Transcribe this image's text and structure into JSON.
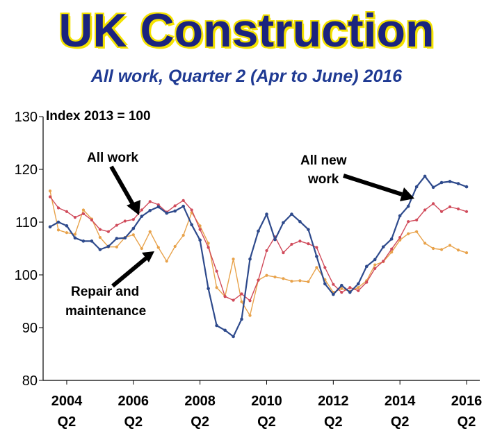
{
  "title": "UK Construction",
  "subtitle": "All work, Quarter 2 (Apr to June) 2016",
  "colors": {
    "title": "#1a237e",
    "title_outline": "#f4e200",
    "subtitle": "#1f3a93",
    "all_work": "#d04a5a",
    "all_new_work": "#2e4a8c",
    "repair_maintenance": "#e8a24a"
  },
  "chart_data": {
    "type": "line",
    "index_label": "Index 2013 = 100",
    "ylim": [
      80,
      130
    ],
    "yticks": [
      80,
      90,
      100,
      110,
      120,
      130
    ],
    "xticks": [
      {
        "year": "2004",
        "quarter": "Q2"
      },
      {
        "year": "2006",
        "quarter": "Q2"
      },
      {
        "year": "2008",
        "quarter": "Q2"
      },
      {
        "year": "2010",
        "quarter": "Q2"
      },
      {
        "year": "2012",
        "quarter": "Q2"
      },
      {
        "year": "2014",
        "quarter": "Q2"
      },
      {
        "year": "2016",
        "quarter": "Q2"
      }
    ],
    "x": [
      "2003 Q4",
      "2004 Q1",
      "2004 Q2",
      "2004 Q3",
      "2004 Q4",
      "2005 Q1",
      "2005 Q2",
      "2005 Q3",
      "2005 Q4",
      "2006 Q1",
      "2006 Q2",
      "2006 Q3",
      "2006 Q4",
      "2007 Q1",
      "2007 Q2",
      "2007 Q3",
      "2007 Q4",
      "2008 Q1",
      "2008 Q2",
      "2008 Q3",
      "2008 Q4",
      "2009 Q1",
      "2009 Q2",
      "2009 Q3",
      "2009 Q4",
      "2010 Q1",
      "2010 Q2",
      "2010 Q3",
      "2010 Q4",
      "2011 Q1",
      "2011 Q2",
      "2011 Q3",
      "2011 Q4",
      "2012 Q1",
      "2012 Q2",
      "2012 Q3",
      "2012 Q4",
      "2013 Q1",
      "2013 Q2",
      "2013 Q3",
      "2013 Q4",
      "2014 Q1",
      "2014 Q2",
      "2014 Q3",
      "2014 Q4",
      "2015 Q1",
      "2015 Q2",
      "2015 Q3",
      "2015 Q4",
      "2016 Q1",
      "2016 Q2"
    ],
    "series": [
      {
        "name": "All work",
        "color": "#d04a5a",
        "values": [
          114.8,
          112.7,
          112.0,
          110.9,
          111.6,
          110.4,
          108.6,
          108.2,
          109.4,
          110.2,
          110.5,
          112.3,
          113.9,
          113.3,
          111.9,
          113.1,
          114.1,
          112.3,
          108.6,
          105.2,
          100.7,
          95.9,
          95.2,
          96.4,
          95.1,
          99.0,
          104.6,
          107.2,
          104.2,
          105.8,
          106.4,
          105.9,
          105.2,
          101.4,
          98.2,
          96.7,
          97.6,
          97.0,
          98.6,
          101.2,
          102.6,
          104.9,
          107.1,
          110.1,
          110.4,
          112.3,
          113.5,
          112.0,
          112.9,
          112.5,
          112.0
        ]
      },
      {
        "name": "All new work",
        "color": "#2e4a8c",
        "values": [
          109.1,
          110.0,
          109.3,
          107.0,
          106.4,
          106.4,
          104.8,
          105.4,
          106.9,
          107.0,
          108.8,
          111.1,
          112.2,
          112.9,
          111.7,
          112.1,
          113.0,
          109.5,
          106.6,
          97.4,
          90.4,
          89.5,
          88.3,
          91.6,
          103.0,
          108.3,
          111.5,
          106.7,
          109.9,
          111.5,
          110.1,
          108.6,
          103.5,
          98.3,
          96.3,
          98.0,
          96.7,
          98.3,
          101.6,
          102.9,
          105.3,
          106.8,
          111.2,
          113.0,
          116.7,
          118.7,
          116.6,
          117.5,
          117.7,
          117.3,
          116.7
        ]
      },
      {
        "name": "Repair and maintenance",
        "color": "#e8a24a",
        "values": [
          115.9,
          108.5,
          108.0,
          107.7,
          112.3,
          110.6,
          107.1,
          105.3,
          105.3,
          107.1,
          107.6,
          105.0,
          108.2,
          105.2,
          102.6,
          105.4,
          107.5,
          111.8,
          109.3,
          106.0,
          97.6,
          95.9,
          103.0,
          94.9,
          92.3,
          99.0,
          99.9,
          99.6,
          99.3,
          98.8,
          98.9,
          98.7,
          101.4,
          99.1,
          96.7,
          97.4,
          96.9,
          97.6,
          98.9,
          101.9,
          102.5,
          104.3,
          106.6,
          107.8,
          108.2,
          106.0,
          105.0,
          104.8,
          105.6,
          104.7,
          104.2
        ]
      }
    ],
    "annotations": [
      {
        "text": "All work"
      },
      {
        "text": "All new"
      },
      {
        "text": "work"
      },
      {
        "text": "Repair and"
      },
      {
        "text": "maintenance"
      }
    ]
  }
}
